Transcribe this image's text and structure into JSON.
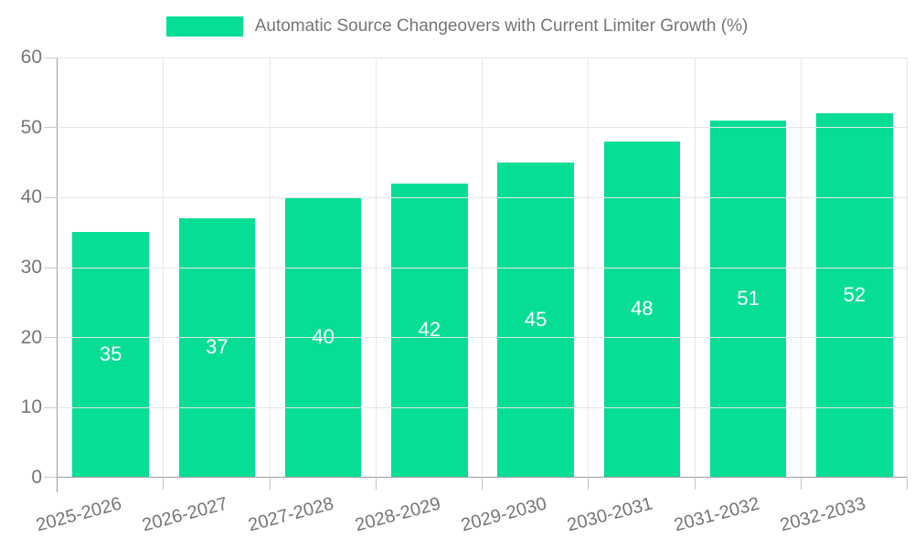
{
  "chart_data": {
    "type": "bar",
    "legend_label": "Automatic Source Changeovers with Current Limiter Growth (%)",
    "categories": [
      "2025-2026",
      "2026-2027",
      "2027-2028",
      "2028-2029",
      "2029-2030",
      "2030-2031",
      "2031-2032",
      "2032-2033"
    ],
    "values": [
      35,
      37,
      40,
      42,
      45,
      48,
      51,
      52
    ],
    "title": "",
    "xlabel": "",
    "ylabel": "",
    "ylim": [
      0,
      60
    ],
    "yticks": [
      0,
      10,
      20,
      30,
      40,
      50,
      60
    ],
    "grid": true,
    "legend_position": "top",
    "bar_color": "#06de96",
    "value_label_color": "#ffffff",
    "axis_text_color": "#757575"
  }
}
